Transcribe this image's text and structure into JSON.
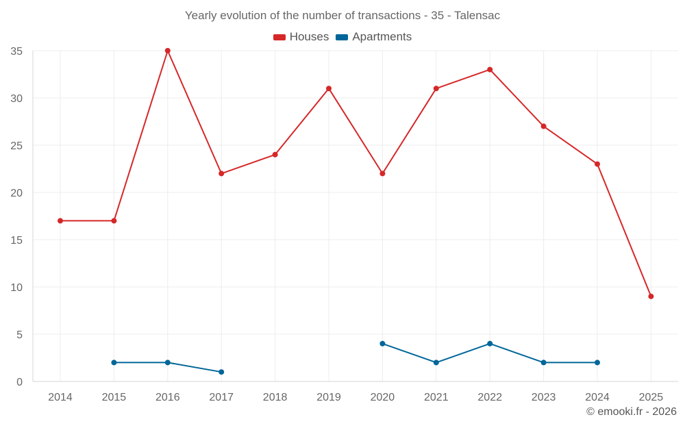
{
  "chart_data": {
    "type": "line",
    "title": "Yearly evolution of the number of transactions - 35 - Talensac",
    "categories": [
      "2014",
      "2015",
      "2016",
      "2017",
      "2018",
      "2019",
      "2020",
      "2021",
      "2022",
      "2023",
      "2024",
      "2025"
    ],
    "series": [
      {
        "name": "Houses",
        "color": "#d62728",
        "values": [
          17,
          17,
          35,
          22,
          24,
          31,
          22,
          31,
          33,
          27,
          23,
          9
        ]
      },
      {
        "name": "Apartments",
        "color": "#006699",
        "values": [
          null,
          2,
          2,
          1,
          null,
          null,
          4,
          2,
          4,
          2,
          2,
          null
        ]
      }
    ],
    "ylim": [
      0,
      35
    ],
    "yticks": [
      "0",
      "5",
      "10",
      "15",
      "20",
      "25",
      "30",
      "35"
    ],
    "grid": true,
    "legend": "top-center",
    "xlabel": "",
    "ylabel": ""
  },
  "credit": "© emooki.fr - 2026"
}
